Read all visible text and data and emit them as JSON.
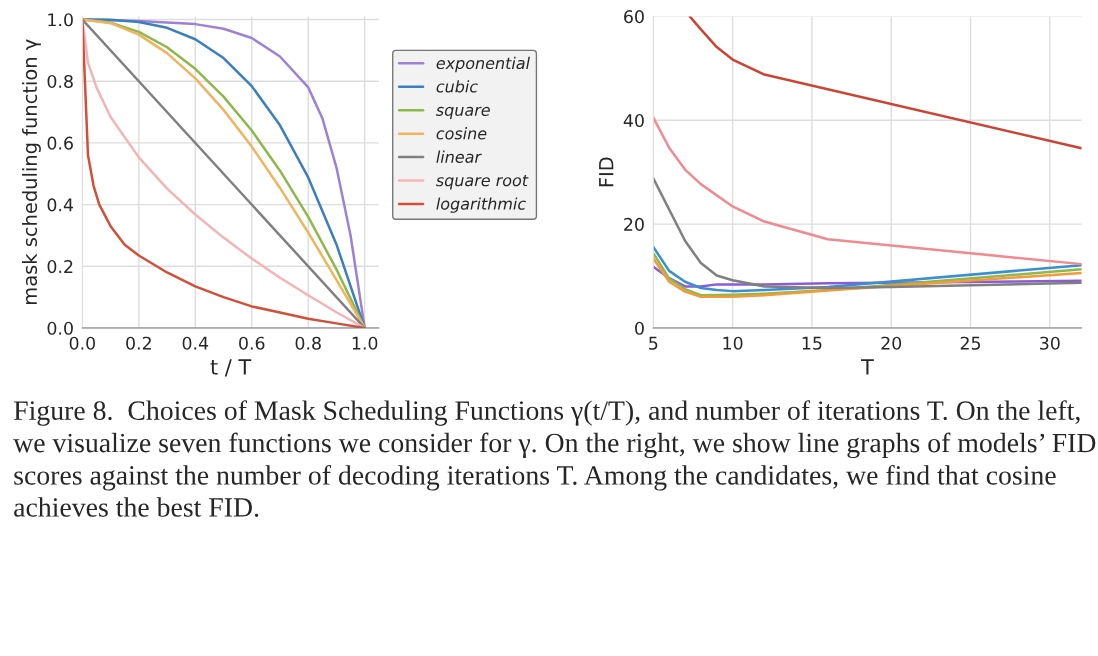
{
  "chart_data": [
    {
      "type": "line",
      "xlabel": "t / T",
      "ylabel": "mask scheduling function γ",
      "xlim": [
        0,
        1.05
      ],
      "ylim": [
        0,
        1.01
      ],
      "xticks": [
        {
          "value": 0,
          "label": "0.0"
        },
        {
          "value": 0.2,
          "label": "0.2"
        },
        {
          "value": 0.4,
          "label": "0.4"
        },
        {
          "value": 0.6,
          "label": "0.6"
        },
        {
          "value": 0.8,
          "label": "0.8"
        },
        {
          "value": 1,
          "label": "1.0"
        }
      ],
      "yticks": [
        {
          "value": 0,
          "label": "0.0"
        },
        {
          "value": 0.2,
          "label": "0.2"
        },
        {
          "value": 0.4,
          "label": "0.4"
        },
        {
          "value": 0.6,
          "label": "0.6"
        },
        {
          "value": 0.8,
          "label": "0.8"
        },
        {
          "value": 1,
          "label": "1.0"
        }
      ],
      "grid": true,
      "legend": "right",
      "series": [
        {
          "name": "exponential",
          "color": "#9b82d6",
          "x": [
            0,
            0.2,
            0.4,
            0.5,
            0.6,
            0.7,
            0.8,
            0.85,
            0.9,
            0.95,
            1
          ],
          "values": [
            1,
            0.995,
            0.985,
            0.97,
            0.94,
            0.88,
            0.78,
            0.68,
            0.52,
            0.3,
            0
          ]
        },
        {
          "name": "cubic",
          "color": "#3b7fbf",
          "x": [
            0,
            0.1,
            0.2,
            0.3,
            0.4,
            0.5,
            0.6,
            0.7,
            0.8,
            0.9,
            1
          ],
          "values": [
            1,
            0.999,
            0.992,
            0.973,
            0.936,
            0.875,
            0.784,
            0.657,
            0.488,
            0.271,
            0
          ]
        },
        {
          "name": "square",
          "color": "#8db84a",
          "x": [
            0,
            0.1,
            0.2,
            0.3,
            0.4,
            0.5,
            0.6,
            0.7,
            0.8,
            0.9,
            1
          ],
          "values": [
            1,
            0.99,
            0.96,
            0.91,
            0.84,
            0.75,
            0.64,
            0.51,
            0.36,
            0.19,
            0
          ]
        },
        {
          "name": "cosine",
          "color": "#f0b35e",
          "x": [
            0,
            0.1,
            0.2,
            0.3,
            0.4,
            0.5,
            0.6,
            0.7,
            0.8,
            0.9,
            1
          ],
          "values": [
            1,
            0.988,
            0.951,
            0.891,
            0.809,
            0.707,
            0.588,
            0.454,
            0.309,
            0.156,
            0
          ]
        },
        {
          "name": "linear",
          "color": "#808080",
          "x": [
            0,
            1
          ],
          "values": [
            1,
            0
          ]
        },
        {
          "name": "square root",
          "color": "#f4b4b7",
          "x": [
            0,
            0.02,
            0.05,
            0.1,
            0.2,
            0.3,
            0.4,
            0.5,
            0.6,
            0.7,
            0.8,
            0.9,
            1
          ],
          "values": [
            1,
            0.86,
            0.78,
            0.684,
            0.553,
            0.452,
            0.368,
            0.293,
            0.225,
            0.163,
            0.106,
            0.051,
            0
          ]
        },
        {
          "name": "logarithmic",
          "color": "#d0503a",
          "x": [
            0,
            0.02,
            0.04,
            0.06,
            0.1,
            0.15,
            0.2,
            0.3,
            0.4,
            0.5,
            0.6,
            0.7,
            0.8,
            0.9,
            1
          ],
          "values": [
            1,
            0.56,
            0.46,
            0.4,
            0.33,
            0.27,
            0.235,
            0.18,
            0.135,
            0.1,
            0.07,
            0.05,
            0.03,
            0.015,
            0
          ]
        }
      ]
    },
    {
      "type": "line",
      "xlabel": "T",
      "ylabel": "FID",
      "xlim": [
        5,
        32
      ],
      "ylim": [
        0,
        60
      ],
      "xticks": [
        5,
        10,
        15,
        20,
        25,
        30
      ],
      "yticks": [
        0,
        20,
        40,
        60
      ],
      "grid": true,
      "series": [
        {
          "color": "#8a5cd8",
          "x": [
            5,
            6,
            7,
            8,
            9,
            12,
            16,
            32
          ],
          "values": [
            11.8,
            9.6,
            8.0,
            8.0,
            8.4,
            8.4,
            8.6,
            9.1
          ]
        },
        {
          "color": "#3b8fd0",
          "x": [
            5,
            6,
            7,
            8,
            9,
            10,
            12,
            16,
            32
          ],
          "values": [
            15.6,
            11.0,
            8.9,
            7.7,
            7.3,
            7.1,
            7.3,
            7.9,
            12.1
          ]
        },
        {
          "color": "#8db84a",
          "x": [
            5,
            6,
            7,
            8,
            10,
            12,
            16,
            32
          ],
          "values": [
            14.4,
            9.5,
            7.5,
            6.3,
            6.4,
            6.6,
            7.3,
            11.3
          ]
        },
        {
          "color": "#f39a3c",
          "x": [
            5,
            6,
            7,
            8,
            10,
            12,
            16,
            32
          ],
          "values": [
            13.4,
            8.9,
            7.0,
            6.0,
            6.0,
            6.3,
            7.2,
            10.6
          ]
        },
        {
          "color": "#808080",
          "x": [
            5,
            7,
            8,
            9,
            10,
            12,
            16,
            20,
            32
          ],
          "values": [
            28.8,
            16.8,
            12.5,
            10.1,
            9.2,
            8.0,
            7.7,
            7.9,
            8.7
          ]
        },
        {
          "color": "#f08a90",
          "x": [
            5,
            6,
            7,
            8,
            10,
            12,
            16,
            32
          ],
          "values": [
            40.5,
            34.7,
            30.5,
            27.7,
            23.4,
            20.5,
            17.1,
            12.3
          ]
        },
        {
          "color": "#cc4433",
          "x": [
            7.3,
            8,
            9,
            10,
            12,
            32
          ],
          "values": [
            60,
            57.5,
            54.1,
            51.7,
            48.8,
            34.6
          ]
        }
      ],
      "annotations": [
        "Figure 8.  Choices of Mask Scheduling Functions γ(t/T), and number of iterations T. On the left, we visualize seven functions we consider for γ. On the right, we show line graphs of models’ FID scores against the number of decoding iterations T. Among the candidates, we find that cosine achieves the best FID."
      ]
    }
  ]
}
